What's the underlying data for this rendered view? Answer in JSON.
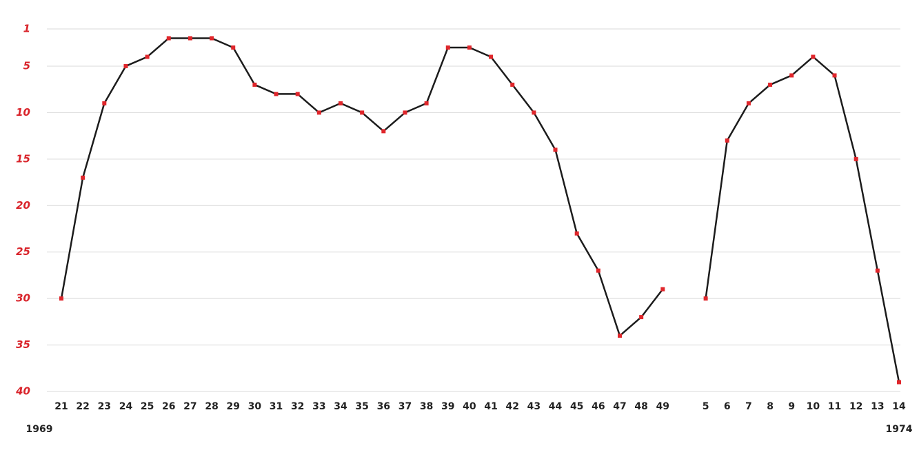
{
  "chart_data": {
    "type": "line",
    "categories": [
      "21",
      "22",
      "23",
      "24",
      "25",
      "26",
      "27",
      "28",
      "29",
      "30",
      "31",
      "32",
      "33",
      "34",
      "35",
      "36",
      "37",
      "38",
      "39",
      "40",
      "41",
      "42",
      "43",
      "44",
      "45",
      "46",
      "47",
      "48",
      "49",
      null,
      "5",
      "6",
      "7",
      "8",
      "9",
      "10",
      "11",
      "12",
      "13",
      "14"
    ],
    "values": [
      30,
      17,
      9,
      5,
      4,
      2,
      2,
      2,
      3,
      7,
      8,
      8,
      10,
      9,
      10,
      12,
      10,
      9,
      3,
      3,
      4,
      7,
      10,
      14,
      23,
      27,
      34,
      32,
      29,
      null,
      30,
      13,
      9,
      7,
      6,
      4,
      6,
      15,
      27,
      39
    ],
    "line_color": "#1c1c1c",
    "marker_color": "#e0262b",
    "ylim": [
      1,
      40
    ],
    "y_inverted": true,
    "yticks": [
      1,
      5,
      10,
      15,
      20,
      25,
      30,
      35,
      40
    ],
    "grid": true,
    "annotations": [
      "1969",
      "1974"
    ]
  }
}
